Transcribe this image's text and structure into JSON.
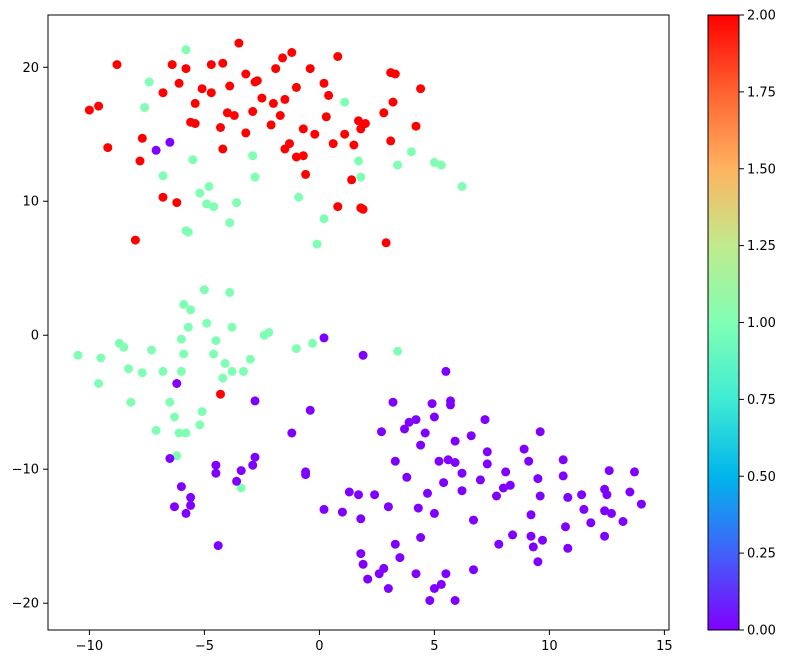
{
  "chart_data": {
    "type": "scatter",
    "title": "",
    "xlabel": "",
    "ylabel": "",
    "xlim": [
      -11.8,
      15.2
    ],
    "ylim": [
      -22.0,
      23.9
    ],
    "xticks": [
      -10,
      -5,
      0,
      5,
      10,
      15
    ],
    "yticks": [
      -20,
      -10,
      0,
      10,
      20
    ],
    "grid": false,
    "colormap": "rainbow",
    "color_range": [
      0.0,
      2.0
    ],
    "colorbar_ticks": [
      {
        "value": 0.0,
        "label": "0.00"
      },
      {
        "value": 0.25,
        "label": "0.25"
      },
      {
        "value": 0.5,
        "label": "0.50"
      },
      {
        "value": 0.75,
        "label": "0.75"
      },
      {
        "value": 1.0,
        "label": "1.00"
      },
      {
        "value": 1.25,
        "label": "1.25"
      },
      {
        "value": 1.5,
        "label": "1.50"
      },
      {
        "value": 1.75,
        "label": "1.75"
      },
      {
        "value": 2.0,
        "label": "2.00"
      }
    ],
    "series": [
      {
        "class_value": 2,
        "color": "#ff0000",
        "points": [
          [
            -10.0,
            16.8
          ],
          [
            -9.6,
            17.1
          ],
          [
            -9.2,
            14.0
          ],
          [
            -8.8,
            20.2
          ],
          [
            -8.0,
            7.1
          ],
          [
            -7.7,
            14.7
          ],
          [
            -7.8,
            13.0
          ],
          [
            -6.8,
            10.3
          ],
          [
            -6.8,
            18.1
          ],
          [
            -6.4,
            20.2
          ],
          [
            -6.2,
            9.9
          ],
          [
            -6.1,
            18.8
          ],
          [
            -5.8,
            19.9
          ],
          [
            -5.6,
            15.9
          ],
          [
            -5.4,
            17.3
          ],
          [
            -5.4,
            15.8
          ],
          [
            -5.1,
            18.4
          ],
          [
            -4.7,
            20.2
          ],
          [
            -4.7,
            18.1
          ],
          [
            -4.3,
            15.5
          ],
          [
            -4.2,
            20.3
          ],
          [
            -4.2,
            13.9
          ],
          [
            -4.0,
            16.6
          ],
          [
            -3.9,
            18.6
          ],
          [
            -3.7,
            16.4
          ],
          [
            -3.5,
            21.8
          ],
          [
            -3.2,
            15.1
          ],
          [
            -3.2,
            19.5
          ],
          [
            -2.9,
            16.7
          ],
          [
            -2.8,
            18.9
          ],
          [
            -2.7,
            19.0
          ],
          [
            -2.5,
            17.7
          ],
          [
            -2.1,
            15.7
          ],
          [
            -2.0,
            17.3
          ],
          [
            -1.9,
            19.9
          ],
          [
            -1.7,
            16.4
          ],
          [
            -1.6,
            20.7
          ],
          [
            -1.5,
            17.6
          ],
          [
            -1.5,
            13.9
          ],
          [
            -1.3,
            14.3
          ],
          [
            -1.2,
            21.1
          ],
          [
            -1.0,
            18.5
          ],
          [
            -1.0,
            13.3
          ],
          [
            -0.7,
            15.4
          ],
          [
            -0.7,
            13.4
          ],
          [
            -0.6,
            12.0
          ],
          [
            -0.4,
            19.9
          ],
          [
            -0.2,
            15.0
          ],
          [
            0.2,
            18.8
          ],
          [
            0.3,
            16.3
          ],
          [
            0.4,
            17.9
          ],
          [
            0.6,
            14.3
          ],
          [
            0.8,
            20.8
          ],
          [
            0.8,
            9.6
          ],
          [
            1.1,
            15.0
          ],
          [
            1.4,
            11.6
          ],
          [
            1.5,
            14.2
          ],
          [
            1.7,
            16.0
          ],
          [
            1.8,
            15.4
          ],
          [
            1.8,
            9.5
          ],
          [
            1.9,
            9.4
          ],
          [
            2.0,
            15.8
          ],
          [
            2.8,
            16.6
          ],
          [
            2.9,
            6.9
          ],
          [
            3.1,
            19.6
          ],
          [
            3.1,
            14.5
          ],
          [
            3.2,
            17.4
          ],
          [
            3.3,
            19.5
          ],
          [
            4.2,
            15.6
          ],
          [
            4.4,
            18.4
          ],
          [
            -4.3,
            -4.4
          ]
        ]
      },
      {
        "class_value": 1,
        "color": "#80ffb4",
        "points": [
          [
            -5.8,
            21.3
          ],
          [
            -7.6,
            17.0
          ],
          [
            -7.4,
            18.9
          ],
          [
            -6.8,
            11.9
          ],
          [
            -5.5,
            13.1
          ],
          [
            -5.8,
            7.8
          ],
          [
            -5.7,
            7.7
          ],
          [
            -5.2,
            10.6
          ],
          [
            -4.9,
            9.8
          ],
          [
            -4.8,
            11.1
          ],
          [
            -4.6,
            9.6
          ],
          [
            -3.9,
            8.4
          ],
          [
            -3.6,
            9.9
          ],
          [
            -2.9,
            13.4
          ],
          [
            -2.8,
            11.8
          ],
          [
            -0.9,
            10.3
          ],
          [
            -0.1,
            6.8
          ],
          [
            0.2,
            8.7
          ],
          [
            1.1,
            17.4
          ],
          [
            1.7,
            13.0
          ],
          [
            1.8,
            11.8
          ],
          [
            3.4,
            12.7
          ],
          [
            4.0,
            13.7
          ],
          [
            5.0,
            12.9
          ],
          [
            5.3,
            12.7
          ],
          [
            6.2,
            11.1
          ],
          [
            -10.5,
            -1.5
          ],
          [
            -9.6,
            -3.6
          ],
          [
            -9.5,
            -1.7
          ],
          [
            -8.7,
            -0.6
          ],
          [
            -8.5,
            -0.9
          ],
          [
            -8.3,
            -2.5
          ],
          [
            -8.2,
            -5.0
          ],
          [
            -7.7,
            -2.8
          ],
          [
            -7.3,
            -1.1
          ],
          [
            -7.1,
            -7.1
          ],
          [
            -6.8,
            -2.7
          ],
          [
            -6.5,
            -5.0
          ],
          [
            -6.3,
            -6.1
          ],
          [
            -6.2,
            -9.0
          ],
          [
            -6.0,
            -0.3
          ],
          [
            -6.0,
            -2.7
          ],
          [
            -5.9,
            -1.4
          ],
          [
            -5.9,
            2.3
          ],
          [
            -6.1,
            -7.3
          ],
          [
            -5.8,
            -7.3
          ],
          [
            -5.7,
            0.6
          ],
          [
            -5.6,
            1.9
          ],
          [
            -5.2,
            -6.7
          ],
          [
            -5.1,
            -5.7
          ],
          [
            -5.0,
            3.4
          ],
          [
            -4.9,
            0.9
          ],
          [
            -4.6,
            -1.4
          ],
          [
            -4.5,
            -0.4
          ],
          [
            -4.2,
            -3.2
          ],
          [
            -4.1,
            -2.1
          ],
          [
            -3.9,
            3.2
          ],
          [
            -3.8,
            -2.7
          ],
          [
            -3.8,
            0.6
          ],
          [
            -3.4,
            -11.4
          ],
          [
            -3.3,
            -2.7
          ],
          [
            -3.0,
            -1.8
          ],
          [
            -2.4,
            0.0
          ],
          [
            -2.2,
            0.2
          ],
          [
            -1.0,
            -1.0
          ],
          [
            -0.3,
            -0.6
          ],
          [
            3.4,
            -1.2
          ]
        ]
      },
      {
        "class_value": 0,
        "color": "#8000ff",
        "points": [
          [
            -7.1,
            13.8
          ],
          [
            -6.5,
            14.4
          ],
          [
            -6.5,
            -9.2
          ],
          [
            -6.2,
            -3.6
          ],
          [
            -6.3,
            -12.8
          ],
          [
            -6.0,
            -11.3
          ],
          [
            -5.8,
            -13.3
          ],
          [
            -5.6,
            -12.1
          ],
          [
            -5.6,
            -12.7
          ],
          [
            -4.5,
            -9.7
          ],
          [
            -4.5,
            -10.3
          ],
          [
            -4.4,
            -15.7
          ],
          [
            -3.6,
            -10.9
          ],
          [
            -3.4,
            -10.1
          ],
          [
            -2.9,
            -9.7
          ],
          [
            -2.8,
            -9.1
          ],
          [
            -2.8,
            -4.9
          ],
          [
            -1.2,
            -7.3
          ],
          [
            -0.6,
            -10.2
          ],
          [
            -0.6,
            -10.4
          ],
          [
            -0.4,
            -5.6
          ],
          [
            0.2,
            -0.2
          ],
          [
            0.2,
            -13.0
          ],
          [
            1.0,
            -13.2
          ],
          [
            1.3,
            -11.7
          ],
          [
            1.7,
            -11.9
          ],
          [
            1.8,
            -13.7
          ],
          [
            1.8,
            -16.3
          ],
          [
            1.9,
            -1.5
          ],
          [
            1.9,
            -17.1
          ],
          [
            2.1,
            -18.2
          ],
          [
            2.4,
            -11.9
          ],
          [
            2.6,
            -17.8
          ],
          [
            2.7,
            -7.2
          ],
          [
            2.8,
            -17.4
          ],
          [
            3.0,
            -12.8
          ],
          [
            3.0,
            -18.9
          ],
          [
            3.2,
            -5.0
          ],
          [
            3.3,
            -9.4
          ],
          [
            3.3,
            -15.6
          ],
          [
            3.5,
            -16.6
          ],
          [
            3.7,
            -7.0
          ],
          [
            3.8,
            -10.6
          ],
          [
            3.9,
            -6.5
          ],
          [
            4.2,
            -6.3
          ],
          [
            4.2,
            -17.8
          ],
          [
            4.3,
            -12.9
          ],
          [
            4.4,
            -15.1
          ],
          [
            4.4,
            -8.2
          ],
          [
            4.6,
            -7.3
          ],
          [
            4.7,
            -11.8
          ],
          [
            4.8,
            -19.8
          ],
          [
            4.9,
            -5.1
          ],
          [
            5.0,
            -6.1
          ],
          [
            5.0,
            -13.3
          ],
          [
            5.0,
            -18.9
          ],
          [
            5.2,
            -9.4
          ],
          [
            5.3,
            -18.6
          ],
          [
            5.4,
            -11.0
          ],
          [
            5.5,
            -17.8
          ],
          [
            5.5,
            -2.7
          ],
          [
            5.6,
            -9.3
          ],
          [
            5.7,
            -4.9
          ],
          [
            5.7,
            -5.2
          ],
          [
            5.9,
            -7.9
          ],
          [
            5.9,
            -9.5
          ],
          [
            5.9,
            -19.8
          ],
          [
            6.2,
            -10.3
          ],
          [
            6.2,
            -11.6
          ],
          [
            6.6,
            -7.5
          ],
          [
            6.7,
            -13.8
          ],
          [
            6.7,
            -17.5
          ],
          [
            7.0,
            -10.8
          ],
          [
            7.2,
            -6.3
          ],
          [
            7.3,
            -8.7
          ],
          [
            7.3,
            -9.6
          ],
          [
            7.7,
            -12.0
          ],
          [
            7.8,
            -15.6
          ],
          [
            8.0,
            -11.4
          ],
          [
            8.1,
            -10.2
          ],
          [
            8.3,
            -11.2
          ],
          [
            8.4,
            -14.9
          ],
          [
            8.9,
            -8.5
          ],
          [
            9.1,
            -9.4
          ],
          [
            9.2,
            -13.4
          ],
          [
            9.2,
            -15.0
          ],
          [
            9.3,
            -15.8
          ],
          [
            9.5,
            -16.9
          ],
          [
            9.5,
            -10.7
          ],
          [
            9.6,
            -12.0
          ],
          [
            9.6,
            -7.2
          ],
          [
            9.7,
            -15.3
          ],
          [
            10.6,
            -9.3
          ],
          [
            10.6,
            -10.5
          ],
          [
            10.7,
            -14.3
          ],
          [
            10.8,
            -12.1
          ],
          [
            10.8,
            -15.9
          ],
          [
            11.4,
            -11.9
          ],
          [
            11.5,
            -13.0
          ],
          [
            11.8,
            -14.0
          ],
          [
            12.4,
            -13.1
          ],
          [
            12.4,
            -11.5
          ],
          [
            12.4,
            -15.0
          ],
          [
            12.5,
            -11.9
          ],
          [
            12.6,
            -10.1
          ],
          [
            12.7,
            -13.3
          ],
          [
            13.2,
            -13.9
          ],
          [
            13.5,
            -11.7
          ],
          [
            13.7,
            -10.2
          ],
          [
            14.0,
            -12.6
          ]
        ]
      }
    ]
  }
}
